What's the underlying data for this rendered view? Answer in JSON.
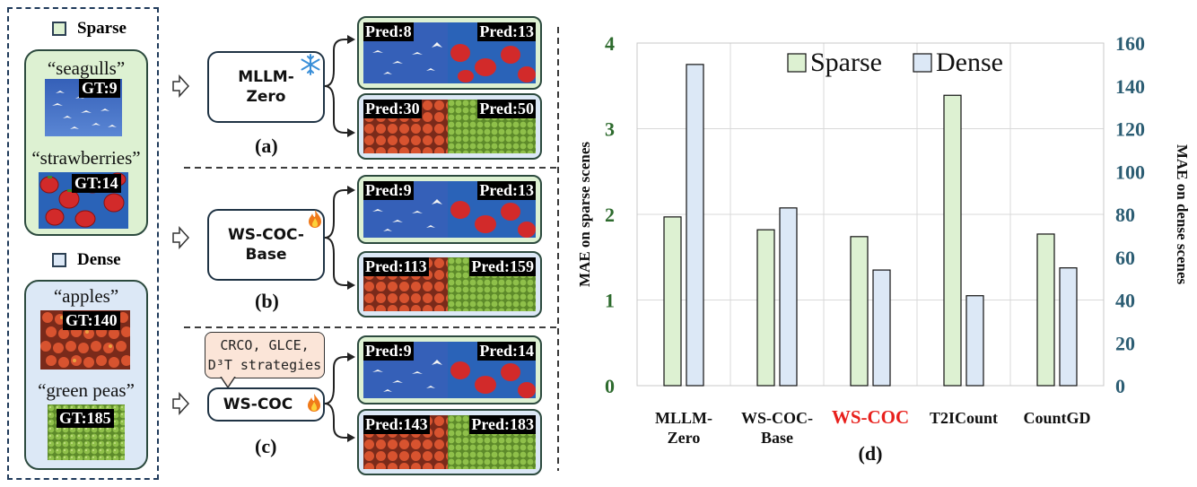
{
  "legend": {
    "sparse_title": "Sparse",
    "dense_title": "Dense",
    "sparse_items": [
      {
        "quote": "“seagulls”",
        "gt": "GT:9"
      },
      {
        "quote": "“strawberries”",
        "gt": "GT:14"
      }
    ],
    "dense_items": [
      {
        "quote": "“apples”",
        "gt": "GT:140"
      },
      {
        "quote": "“green peas”",
        "gt": "GT:185"
      }
    ],
    "colors": {
      "sparse_fill": "#ddf1d2",
      "dense_fill": "#dce8f6"
    }
  },
  "panels": [
    {
      "method": "MLLM-Zero",
      "icon": "snowflake-icon",
      "sublabel": "(a)",
      "sparse_preds": [
        "Pred:8",
        "Pred:13"
      ],
      "dense_preds": [
        "Pred:30",
        "Pred:50"
      ]
    },
    {
      "method": "WS-COC-Base",
      "icon": "flame-icon",
      "sublabel": "(b)",
      "sparse_preds": [
        "Pred:9",
        "Pred:13"
      ],
      "dense_preds": [
        "Pred:113",
        "Pred:159"
      ]
    },
    {
      "method": "WS-COC",
      "icon": "flame-icon",
      "sublabel": "(c)",
      "callout": [
        "CRCO, GLCE,",
        "D³T strategies"
      ],
      "sparse_preds": [
        "Pred:9",
        "Pred:14"
      ],
      "dense_preds": [
        "Pred:143",
        "Pred:183"
      ]
    }
  ],
  "chart_data": {
    "type": "bar",
    "categories": [
      "MLLM-Zero",
      "WS-COC-Base",
      "WS-COC",
      "T2ICount",
      "CountGD"
    ],
    "category_lines": [
      [
        "MLLM-",
        "Zero"
      ],
      [
        "WS-COC-",
        "Base"
      ],
      [
        "WS-COC"
      ],
      [
        "T2ICount"
      ],
      [
        "CountGD"
      ]
    ],
    "highlight_category": "WS-COC",
    "series": [
      {
        "name": "Sparse",
        "axis": "left",
        "values": [
          1.97,
          1.82,
          1.74,
          3.39,
          1.77
        ],
        "color": "#ddf1d2"
      },
      {
        "name": "Dense",
        "axis": "right",
        "values": [
          150,
          83,
          54,
          42,
          55
        ],
        "color": "#dce8f6"
      }
    ],
    "ylabel_left": "MAE on sparse scenes",
    "ylabel_right": "MAE on dense scenes",
    "ylim_left": [
      0,
      4
    ],
    "ylim_right": [
      0,
      160
    ],
    "yticks_left": [
      "0",
      "1",
      "2",
      "3",
      "4"
    ],
    "yticks_right": [
      "0",
      "20",
      "40",
      "60",
      "80",
      "100",
      "120",
      "140",
      "160"
    ],
    "sublabel": "(d)",
    "legend_position": "top",
    "grid": true,
    "colors": {
      "left_axis": "#2e6b2e",
      "right_axis": "#2c5d73",
      "highlight": "#e8201c"
    }
  }
}
